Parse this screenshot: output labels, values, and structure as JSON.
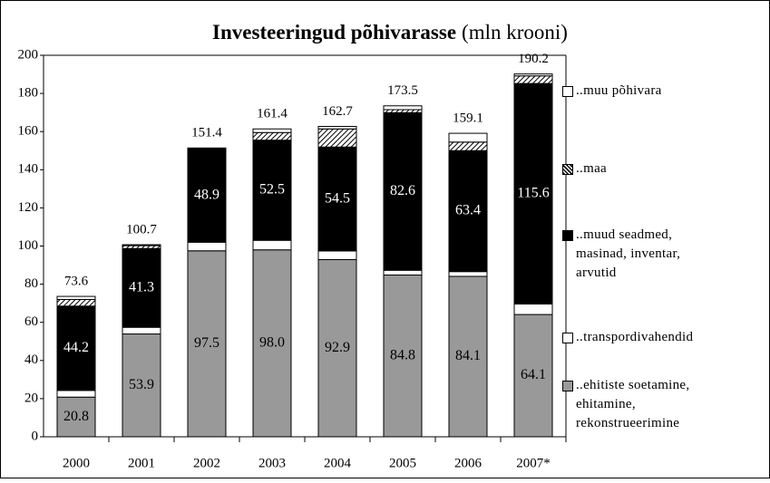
{
  "chart_data": {
    "type": "stacked_bar",
    "title": "Investeeringud põhivarasse",
    "title_unit": "(mln krooni)",
    "categories": [
      "2000",
      "2001",
      "2002",
      "2003",
      "2004",
      "2005",
      "2006",
      "2007*"
    ],
    "series": [
      {
        "name": "..ehitiste soetamine, ehitamine, rekonstrueerimine",
        "color": "#999999",
        "show_labels": true,
        "label_color": "#000000",
        "values": [
          20.8,
          53.9,
          97.5,
          98.0,
          92.9,
          84.8,
          84.1,
          64.1
        ],
        "value_labels": [
          "20.8",
          "53.9",
          "97.5",
          "98.0",
          "92.9",
          "84.8",
          "84.1",
          "64.1"
        ]
      },
      {
        "name": "..transpordivahendid",
        "color": "#ffffff",
        "show_labels": false,
        "values": [
          3.5,
          3.5,
          4.5,
          5.0,
          4.5,
          2.5,
          2.5,
          5.5
        ]
      },
      {
        "name": "..muud seadmed, masinad, inventar, arvutid",
        "color": "#000000",
        "show_labels": true,
        "label_color": "#ffffff",
        "values": [
          44.2,
          41.3,
          48.9,
          52.5,
          54.5,
          82.6,
          63.4,
          115.6
        ]
      },
      {
        "name": "..maa",
        "color": "#ffffff",
        "pattern": "hatch",
        "show_labels": false,
        "values": [
          3.5,
          1.5,
          0,
          4.0,
          9.5,
          1.6,
          4.5,
          4.0
        ]
      },
      {
        "name": "..muu põhivara",
        "color": "#ffffff",
        "show_labels": false,
        "values": [
          1.6,
          0.5,
          0.5,
          1.9,
          1.3,
          2.0,
          4.6,
          1.0
        ]
      }
    ],
    "totals": [
      73.6,
      100.7,
      151.4,
      161.4,
      162.7,
      173.5,
      159.1,
      190.2
    ],
    "ylim": [
      0,
      200
    ],
    "yticks": [
      0,
      20,
      40,
      60,
      80,
      100,
      120,
      140,
      160,
      180,
      200
    ],
    "grid": false,
    "legend": "right"
  }
}
